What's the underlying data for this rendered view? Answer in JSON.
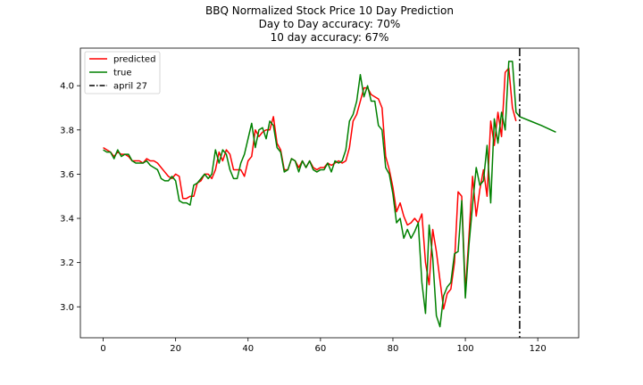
{
  "chart_data": {
    "type": "line",
    "title_lines": [
      "BBQ Normalized Stock Price 10 Day Prediction",
      "Day to Day accuracy: 70%",
      "10 day accuracy: 67%"
    ],
    "xlabel": "",
    "ylabel": "",
    "xlim": [
      -6.3,
      131.3
    ],
    "ylim": [
      2.86,
      4.17
    ],
    "xticks": [
      0,
      20,
      40,
      60,
      80,
      100,
      120
    ],
    "yticks": [
      3.0,
      3.2,
      3.4,
      3.6,
      3.8,
      4.0
    ],
    "grid": false,
    "legend_position": "upper-left",
    "legend": [
      {
        "label": "predicted",
        "color": "#ff0000",
        "style": "solid"
      },
      {
        "label": "true",
        "color": "#008000",
        "style": "solid"
      },
      {
        "label": "april 27",
        "color": "#000000",
        "style": "dashdot"
      }
    ],
    "vline": {
      "x": 115,
      "label": "april 27",
      "color": "#000000"
    },
    "series": [
      {
        "name": "predicted",
        "color": "#ff0000",
        "points": [
          [
            0,
            3.72
          ],
          [
            1,
            3.71
          ],
          [
            2,
            3.7
          ],
          [
            3,
            3.68
          ],
          [
            4,
            3.7
          ],
          [
            5,
            3.69
          ],
          [
            6,
            3.69
          ],
          [
            7,
            3.68
          ],
          [
            8,
            3.66
          ],
          [
            9,
            3.66
          ],
          [
            10,
            3.66
          ],
          [
            11,
            3.65
          ],
          [
            12,
            3.67
          ],
          [
            13,
            3.66
          ],
          [
            14,
            3.66
          ],
          [
            15,
            3.65
          ],
          [
            16,
            3.63
          ],
          [
            17,
            3.61
          ],
          [
            18,
            3.59
          ],
          [
            19,
            3.58
          ],
          [
            20,
            3.6
          ],
          [
            21,
            3.59
          ],
          [
            22,
            3.49
          ],
          [
            23,
            3.49
          ],
          [
            24,
            3.5
          ],
          [
            25,
            3.5
          ],
          [
            26,
            3.56
          ],
          [
            27,
            3.57
          ],
          [
            28,
            3.6
          ],
          [
            29,
            3.6
          ],
          [
            30,
            3.58
          ],
          [
            31,
            3.62
          ],
          [
            32,
            3.7
          ],
          [
            33,
            3.66
          ],
          [
            34,
            3.71
          ],
          [
            35,
            3.69
          ],
          [
            36,
            3.62
          ],
          [
            37,
            3.62
          ],
          [
            38,
            3.62
          ],
          [
            39,
            3.59
          ],
          [
            40,
            3.66
          ],
          [
            41,
            3.68
          ],
          [
            42,
            3.8
          ],
          [
            43,
            3.77
          ],
          [
            44,
            3.79
          ],
          [
            45,
            3.8
          ],
          [
            46,
            3.8
          ],
          [
            47,
            3.86
          ],
          [
            48,
            3.74
          ],
          [
            49,
            3.71
          ],
          [
            50,
            3.62
          ],
          [
            51,
            3.62
          ],
          [
            52,
            3.67
          ],
          [
            53,
            3.66
          ],
          [
            54,
            3.63
          ],
          [
            55,
            3.66
          ],
          [
            56,
            3.63
          ],
          [
            57,
            3.66
          ],
          [
            58,
            3.63
          ],
          [
            59,
            3.62
          ],
          [
            60,
            3.63
          ],
          [
            61,
            3.63
          ],
          [
            62,
            3.65
          ],
          [
            63,
            3.64
          ],
          [
            64,
            3.65
          ],
          [
            65,
            3.66
          ],
          [
            66,
            3.65
          ],
          [
            67,
            3.66
          ],
          [
            68,
            3.72
          ],
          [
            69,
            3.84
          ],
          [
            70,
            3.87
          ],
          [
            71,
            3.93
          ],
          [
            72,
            3.99
          ],
          [
            73,
            3.99
          ],
          [
            74,
            3.96
          ],
          [
            75,
            3.95
          ],
          [
            76,
            3.94
          ],
          [
            77,
            3.9
          ],
          [
            78,
            3.68
          ],
          [
            79,
            3.62
          ],
          [
            80,
            3.54
          ],
          [
            81,
            3.43
          ],
          [
            82,
            3.47
          ],
          [
            83,
            3.41
          ],
          [
            84,
            3.37
          ],
          [
            85,
            3.38
          ],
          [
            86,
            3.4
          ],
          [
            87,
            3.38
          ],
          [
            88,
            3.42
          ],
          [
            89,
            3.2
          ],
          [
            90,
            3.1
          ],
          [
            91,
            3.35
          ],
          [
            92,
            3.25
          ],
          [
            93,
            3.12
          ],
          [
            94,
            2.99
          ],
          [
            95,
            3.06
          ],
          [
            96,
            3.08
          ],
          [
            97,
            3.2
          ],
          [
            98,
            3.52
          ],
          [
            99,
            3.5
          ],
          [
            100,
            3.07
          ],
          [
            101,
            3.32
          ],
          [
            102,
            3.59
          ],
          [
            103,
            3.41
          ],
          [
            104,
            3.53
          ],
          [
            105,
            3.62
          ],
          [
            106,
            3.5
          ],
          [
            107,
            3.84
          ],
          [
            108,
            3.73
          ],
          [
            109,
            3.88
          ],
          [
            110,
            3.77
          ],
          [
            111,
            4.06
          ],
          [
            112,
            4.08
          ],
          [
            113,
            3.9
          ],
          [
            114,
            3.84
          ]
        ]
      },
      {
        "name": "true",
        "color": "#008000",
        "points": [
          [
            0,
            3.71
          ],
          [
            1,
            3.7
          ],
          [
            2,
            3.7
          ],
          [
            3,
            3.67
          ],
          [
            4,
            3.71
          ],
          [
            5,
            3.68
          ],
          [
            6,
            3.69
          ],
          [
            7,
            3.69
          ],
          [
            8,
            3.66
          ],
          [
            9,
            3.65
          ],
          [
            10,
            3.65
          ],
          [
            11,
            3.65
          ],
          [
            12,
            3.66
          ],
          [
            13,
            3.64
          ],
          [
            14,
            3.63
          ],
          [
            15,
            3.62
          ],
          [
            16,
            3.58
          ],
          [
            17,
            3.57
          ],
          [
            18,
            3.57
          ],
          [
            19,
            3.59
          ],
          [
            20,
            3.57
          ],
          [
            21,
            3.48
          ],
          [
            22,
            3.47
          ],
          [
            23,
            3.47
          ],
          [
            24,
            3.46
          ],
          [
            25,
            3.55
          ],
          [
            26,
            3.56
          ],
          [
            27,
            3.58
          ],
          [
            28,
            3.6
          ],
          [
            29,
            3.58
          ],
          [
            30,
            3.6
          ],
          [
            31,
            3.71
          ],
          [
            32,
            3.65
          ],
          [
            33,
            3.71
          ],
          [
            34,
            3.69
          ],
          [
            35,
            3.62
          ],
          [
            36,
            3.58
          ],
          [
            37,
            3.58
          ],
          [
            38,
            3.65
          ],
          [
            39,
            3.69
          ],
          [
            40,
            3.76
          ],
          [
            41,
            3.83
          ],
          [
            42,
            3.72
          ],
          [
            43,
            3.8
          ],
          [
            44,
            3.81
          ],
          [
            45,
            3.76
          ],
          [
            46,
            3.84
          ],
          [
            47,
            3.82
          ],
          [
            48,
            3.72
          ],
          [
            49,
            3.7
          ],
          [
            50,
            3.61
          ],
          [
            51,
            3.62
          ],
          [
            52,
            3.67
          ],
          [
            53,
            3.66
          ],
          [
            54,
            3.61
          ],
          [
            55,
            3.66
          ],
          [
            56,
            3.63
          ],
          [
            57,
            3.66
          ],
          [
            58,
            3.62
          ],
          [
            59,
            3.61
          ],
          [
            60,
            3.62
          ],
          [
            61,
            3.62
          ],
          [
            62,
            3.65
          ],
          [
            63,
            3.61
          ],
          [
            64,
            3.66
          ],
          [
            65,
            3.65
          ],
          [
            66,
            3.66
          ],
          [
            67,
            3.71
          ],
          [
            68,
            3.84
          ],
          [
            69,
            3.87
          ],
          [
            70,
            3.93
          ],
          [
            71,
            4.05
          ],
          [
            72,
            3.95
          ],
          [
            73,
            4.0
          ],
          [
            74,
            3.93
          ],
          [
            75,
            3.93
          ],
          [
            76,
            3.82
          ],
          [
            77,
            3.8
          ],
          [
            78,
            3.63
          ],
          [
            79,
            3.6
          ],
          [
            80,
            3.51
          ],
          [
            81,
            3.38
          ],
          [
            82,
            3.4
          ],
          [
            83,
            3.31
          ],
          [
            84,
            3.35
          ],
          [
            85,
            3.31
          ],
          [
            86,
            3.34
          ],
          [
            87,
            3.38
          ],
          [
            88,
            3.11
          ],
          [
            89,
            2.97
          ],
          [
            90,
            3.37
          ],
          [
            91,
            3.22
          ],
          [
            92,
            2.96
          ],
          [
            93,
            2.91
          ],
          [
            94,
            3.05
          ],
          [
            95,
            3.09
          ],
          [
            96,
            3.11
          ],
          [
            97,
            3.24
          ],
          [
            98,
            3.25
          ],
          [
            99,
            3.48
          ],
          [
            100,
            3.04
          ],
          [
            101,
            3.28
          ],
          [
            102,
            3.46
          ],
          [
            103,
            3.63
          ],
          [
            104,
            3.55
          ],
          [
            105,
            3.57
          ],
          [
            106,
            3.73
          ],
          [
            107,
            3.47
          ],
          [
            108,
            3.85
          ],
          [
            109,
            3.74
          ],
          [
            110,
            3.88
          ],
          [
            111,
            3.8
          ],
          [
            112,
            4.11
          ],
          [
            113,
            4.11
          ],
          [
            114,
            3.88
          ],
          [
            115,
            3.86
          ],
          [
            118,
            3.84
          ],
          [
            121,
            3.82
          ],
          [
            125,
            3.79
          ]
        ]
      }
    ]
  }
}
